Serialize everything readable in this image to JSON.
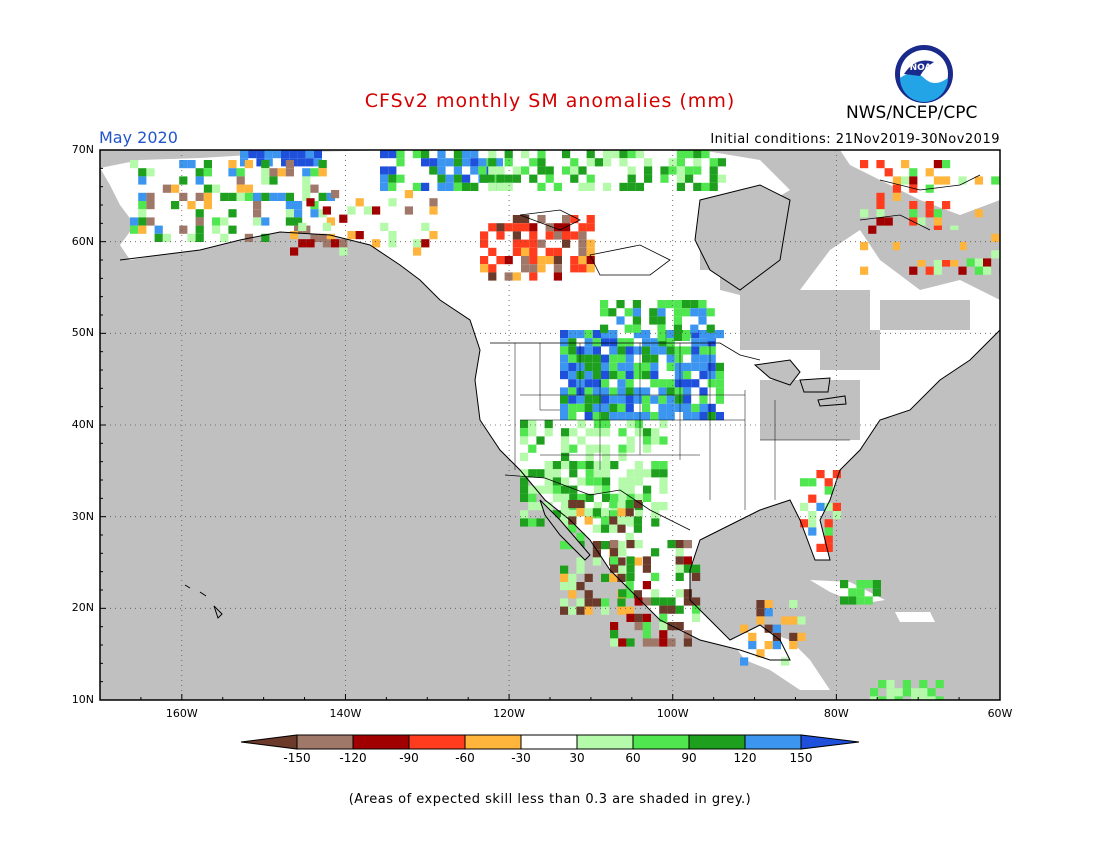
{
  "title": "CFSv2 monthly SM anomalies (mm)",
  "period": "May 2020",
  "initial_conditions": "Initial conditions: 21Nov2019-30Nov2019",
  "agency": "NWS/NCEP/CPC",
  "logo_text": "NOAA",
  "footnote": "(Areas of expected skill less than 0.3 are shaded in grey.)",
  "axes": {
    "lat_labels": [
      "70N",
      "60N",
      "50N",
      "40N",
      "30N",
      "20N",
      "10N"
    ],
    "lon_labels": [
      "160W",
      "140W",
      "120W",
      "100W",
      "80W",
      "60W"
    ]
  },
  "colorbar": {
    "labels": [
      "-150",
      "-120",
      "-90",
      "-60",
      "-30",
      "30",
      "60",
      "90",
      "120",
      "150"
    ],
    "colors": [
      "#6b3a2a",
      "#a0786a",
      "#a00000",
      "#ff3c1e",
      "#ffb43c",
      "#ffffff",
      "#b4faaa",
      "#50e650",
      "#1ea01e",
      "#3c96f0",
      "#1e50dc"
    ]
  },
  "colors": {
    "grey_skill": "#c0c0c0",
    "land_white": "#ffffff",
    "title": "#d40000",
    "period": "#2255cc"
  }
}
